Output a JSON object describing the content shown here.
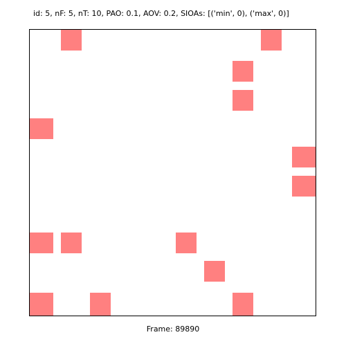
{
  "header": {
    "text": "id: 5, nF: 5, nT: 10, PAO: 0.1, AOV: 0.2, SIOAs: [('min', 0), ('max', 0)]"
  },
  "footer": {
    "text": "Frame: 89890"
  },
  "board": {
    "grid_size": 10,
    "cell_color": "#ff8080",
    "occupied_cells": [
      {
        "col": 1,
        "row": 0
      },
      {
        "col": 8,
        "row": 0
      },
      {
        "col": 7,
        "row": 1
      },
      {
        "col": 7,
        "row": 2
      },
      {
        "col": 0,
        "row": 3
      },
      {
        "col": 9,
        "row": 4
      },
      {
        "col": 9,
        "row": 5
      },
      {
        "col": 0,
        "row": 7
      },
      {
        "col": 1,
        "row": 7
      },
      {
        "col": 5,
        "row": 7
      },
      {
        "col": 6,
        "row": 8
      },
      {
        "col": 0,
        "row": 9
      },
      {
        "col": 2,
        "row": 9
      },
      {
        "col": 7,
        "row": 9
      }
    ]
  }
}
